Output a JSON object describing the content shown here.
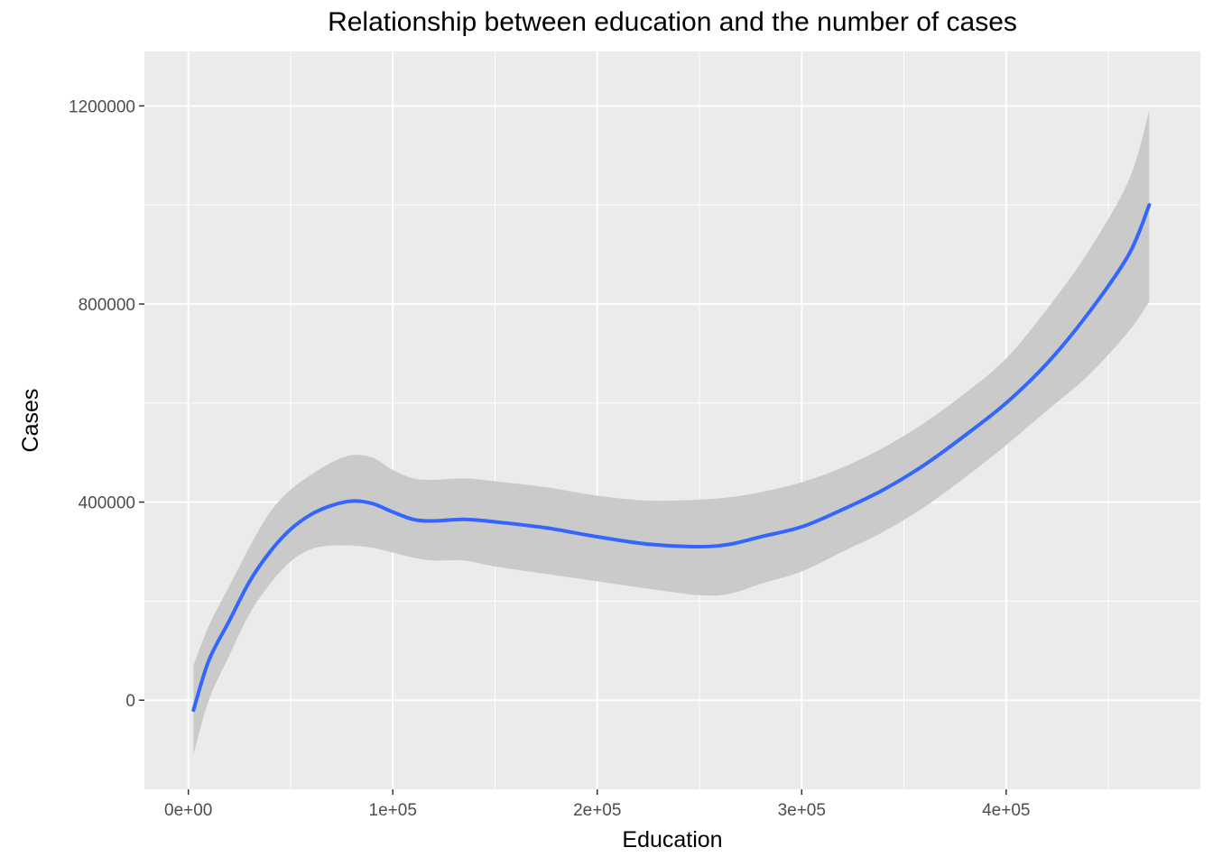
{
  "chart_data": {
    "type": "line",
    "title": "Relationship between education and the number of cases",
    "xlabel": "Education",
    "ylabel": "Cases",
    "xlim": [
      -21500,
      495000
    ],
    "ylim": [
      -180000,
      1310000
    ],
    "x_ticks": [
      0,
      100000,
      200000,
      300000,
      400000
    ],
    "x_tick_labels": [
      "0e+00",
      "1e+05",
      "2e+05",
      "3e+05",
      "4e+05"
    ],
    "y_ticks": [
      0,
      400000,
      800000,
      1200000
    ],
    "y_tick_labels": [
      "0",
      "400000",
      "800000",
      "1200000"
    ],
    "grid": true,
    "legend": "none",
    "colors": {
      "panel": "#EBEBEB",
      "grid": "#FFFFFF",
      "line": "#3366FF",
      "ribbon": "#C8C8C8"
    },
    "series": [
      {
        "smooth": true,
        "x": [
          2500,
          10000,
          20000,
          30000,
          40000,
          50000,
          60000,
          70000,
          80000,
          90000,
          100000,
          110000,
          120000,
          135000,
          150000,
          175000,
          200000,
          225000,
          250000,
          265000,
          280000,
          300000,
          320000,
          340000,
          360000,
          380000,
          400000,
          420000,
          440000,
          460000,
          470000
        ],
        "y": [
          -20000,
          80000,
          160000,
          240000,
          300000,
          345000,
          375000,
          393000,
          402000,
          397000,
          380000,
          365000,
          362000,
          365000,
          360000,
          348000,
          330000,
          315000,
          310000,
          315000,
          330000,
          350000,
          385000,
          425000,
          475000,
          535000,
          600000,
          680000,
          780000,
          900000,
          1000000
        ],
        "lower": [
          -110000,
          0,
          90000,
          175000,
          235000,
          280000,
          305000,
          312000,
          312000,
          308000,
          298000,
          288000,
          282000,
          282000,
          270000,
          255000,
          240000,
          225000,
          212000,
          215000,
          235000,
          260000,
          300000,
          340000,
          390000,
          450000,
          515000,
          585000,
          655000,
          745000,
          805000
        ],
        "upper": [
          70000,
          150000,
          230000,
          310000,
          380000,
          425000,
          455000,
          480000,
          495000,
          490000,
          465000,
          448000,
          445000,
          448000,
          442000,
          430000,
          413000,
          403000,
          405000,
          410000,
          420000,
          440000,
          470000,
          510000,
          560000,
          620000,
          690000,
          790000,
          905000,
          1050000,
          1190000
        ]
      }
    ]
  }
}
